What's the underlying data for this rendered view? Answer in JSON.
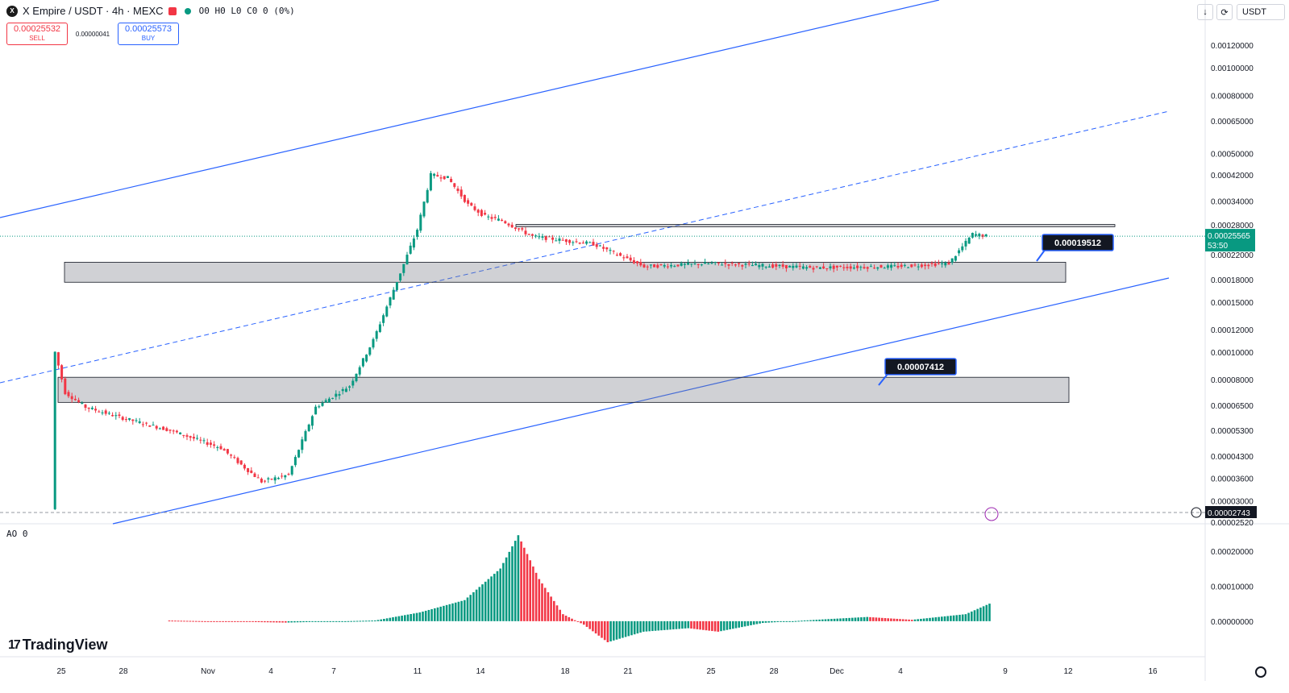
{
  "header": {
    "symbol": "X Empire / USDT · 4h · MEXC",
    "ohlc": "O0 H0 L0 C0 0 (0%)",
    "sell_price": "0.00025532",
    "sell_label": "SELL",
    "spread": "0.00000041",
    "buy_price": "0.00025573",
    "buy_label": "BUY",
    "currency": "USDT",
    "icons": [
      "download-icon",
      "fullscreen-icon"
    ]
  },
  "indicator": {
    "label": "AO 0"
  },
  "branding": {
    "name": "TradingView"
  },
  "colors": {
    "up": "#089981",
    "down": "#f23645",
    "trendline": "#2962ff",
    "price_label_bg": "#089981",
    "callout_bg": "#131722"
  },
  "chart_data": {
    "type": "candlestick",
    "timeframe": "4h",
    "yscale": "log",
    "ylim": [
      2.52e-05,
      0.00152
    ],
    "price_ticks": [
      "0.00120000",
      "0.00100000",
      "0.00080000",
      "0.00065000",
      "0.00050000",
      "0.00042000",
      "0.00034000",
      "0.00028000",
      "0.00022000",
      "0.00018000",
      "0.00015000",
      "0.00012000",
      "0.00010000",
      "0.00008000",
      "0.00006500",
      "0.00005300",
      "0.00004300",
      "0.00003600",
      "0.00003000",
      "0.00002520"
    ],
    "x_ticks": [
      "25",
      "28",
      "Nov",
      "4",
      "7",
      "11",
      "14",
      "18",
      "21",
      "25",
      "28",
      "Dec",
      "4",
      "9",
      "12",
      "16"
    ],
    "price_path": [
      {
        "i": 0,
        "p": 2.8e-05
      },
      {
        "i": 1,
        "p": 0.0001
      },
      {
        "i": 4,
        "p": 7.2e-05
      },
      {
        "i": 10,
        "p": 6.4e-05
      },
      {
        "i": 20,
        "p": 5.9e-05
      },
      {
        "i": 35,
        "p": 5.3e-05
      },
      {
        "i": 50,
        "p": 4.6e-05
      },
      {
        "i": 62,
        "p": 3.5e-05
      },
      {
        "i": 70,
        "p": 3.7e-05
      },
      {
        "i": 78,
        "p": 6.4e-05
      },
      {
        "i": 88,
        "p": 7.6e-05
      },
      {
        "i": 95,
        "p": 0.00011
      },
      {
        "i": 103,
        "p": 0.00019
      },
      {
        "i": 108,
        "p": 0.00027
      },
      {
        "i": 112,
        "p": 0.00042
      },
      {
        "i": 117,
        "p": 0.00041
      },
      {
        "i": 123,
        "p": 0.00033
      },
      {
        "i": 128,
        "p": 0.0003
      },
      {
        "i": 133,
        "p": 0.00029
      },
      {
        "i": 142,
        "p": 0.000255
      },
      {
        "i": 160,
        "p": 0.00024
      },
      {
        "i": 175,
        "p": 0.0002
      },
      {
        "i": 195,
        "p": 0.000205
      },
      {
        "i": 225,
        "p": 0.000198
      },
      {
        "i": 250,
        "p": 0.0002
      },
      {
        "i": 265,
        "p": 0.000205
      },
      {
        "i": 272,
        "p": 0.00026
      },
      {
        "i": 276,
        "p": 0.000256
      }
    ],
    "current_price": "0.00025565",
    "countdown": "53:50",
    "crosshair_price": "0.00002743",
    "zones": [
      {
        "price_top": 0.000207,
        "price_bottom": 0.000176,
        "label": "0.00019512"
      },
      {
        "price_top": 8.15e-05,
        "price_bottom": 6.65e-05,
        "label": "0.00007412"
      },
      {
        "price_top": 0.000281,
        "price_bottom": 0.000276,
        "label": ""
      }
    ],
    "awesome_oscillator": {
      "name": "AO",
      "yticks": [
        "0.00020000",
        "0.00010000",
        "0.00000000"
      ],
      "path": [
        {
          "i": 0,
          "v": 2e-06
        },
        {
          "i": 40,
          "v": -4e-06
        },
        {
          "i": 70,
          "v": 2e-06
        },
        {
          "i": 85,
          "v": 2.5e-05
        },
        {
          "i": 100,
          "v": 6e-05
        },
        {
          "i": 112,
          "v": 0.00015
        },
        {
          "i": 118,
          "v": 0.000245
        },
        {
          "i": 125,
          "v": 0.00012
        },
        {
          "i": 133,
          "v": 2e-05
        },
        {
          "i": 140,
          "v": -1e-05
        },
        {
          "i": 148,
          "v": -6e-05
        },
        {
          "i": 160,
          "v": -3e-05
        },
        {
          "i": 175,
          "v": -2e-05
        },
        {
          "i": 185,
          "v": -3e-05
        },
        {
          "i": 200,
          "v": -5e-06
        },
        {
          "i": 220,
          "v": 5e-06
        },
        {
          "i": 235,
          "v": 1.2e-05
        },
        {
          "i": 250,
          "v": 4e-06
        },
        {
          "i": 268,
          "v": 2e-05
        },
        {
          "i": 276,
          "v": 5e-05
        }
      ]
    }
  }
}
